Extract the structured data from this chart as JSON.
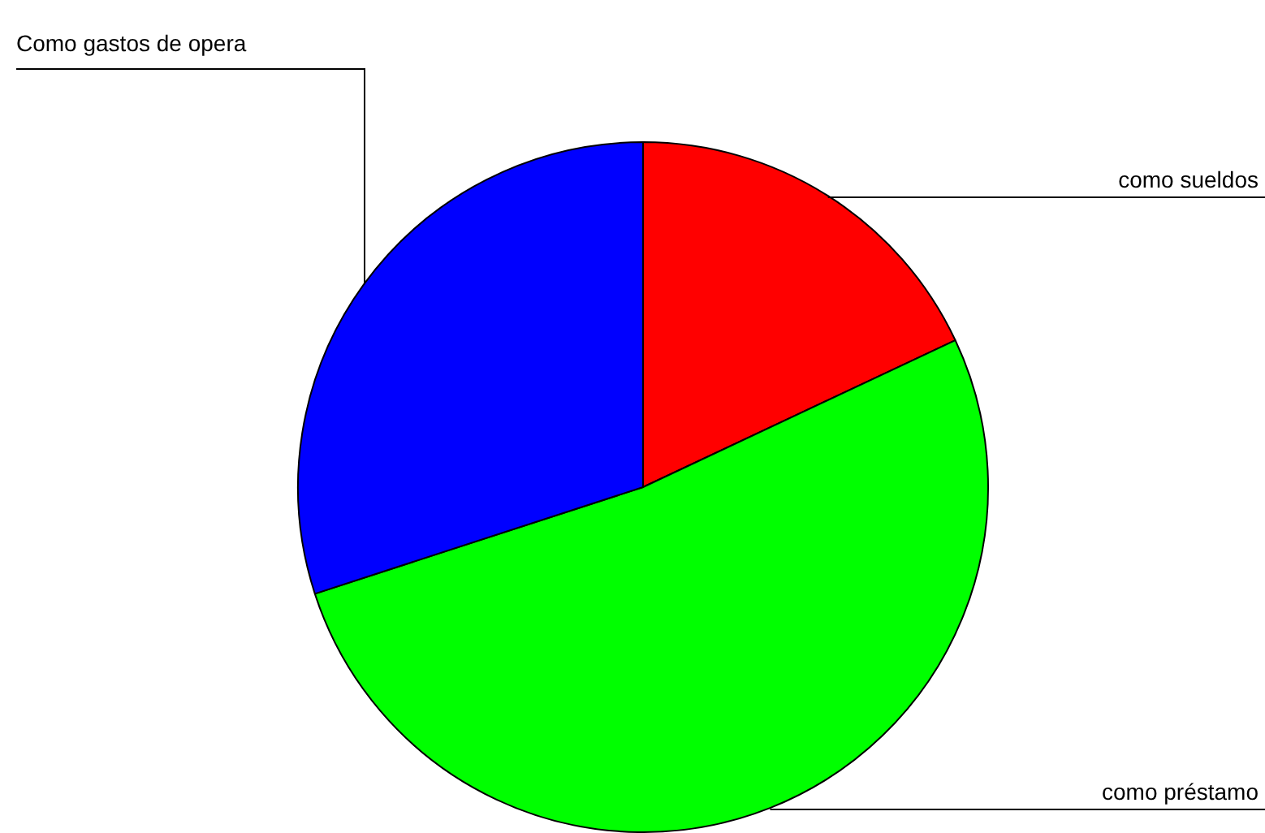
{
  "chart_data": {
    "type": "pie",
    "categories": [
      "como sueldos",
      "como préstamo",
      "Como gastos de opera"
    ],
    "values": [
      18,
      52,
      30
    ],
    "colors": [
      "#ff0000",
      "#00ff00",
      "#0000ff"
    ]
  }
}
